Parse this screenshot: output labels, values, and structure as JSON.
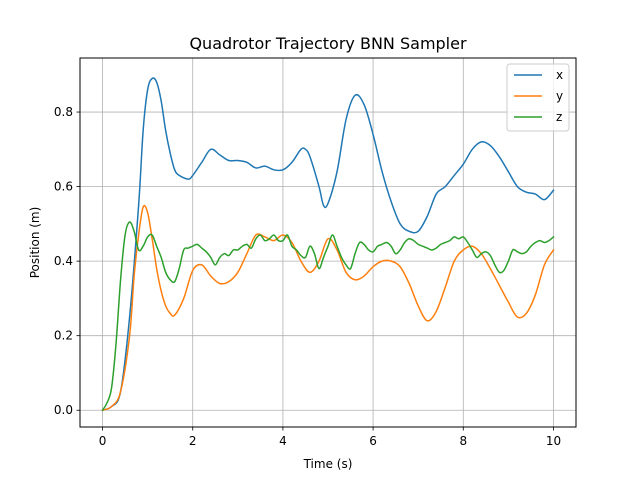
{
  "chart_data": {
    "type": "line",
    "title": "Quadrotor Trajectory BNN Sampler",
    "xlabel": "Time (s)",
    "ylabel": "Position (m)",
    "xlim": [
      -0.5,
      10.5
    ],
    "ylim": [
      -0.045,
      0.945
    ],
    "xticks": [
      0,
      2,
      4,
      6,
      8,
      10
    ],
    "yticks": [
      0.0,
      0.2,
      0.4,
      0.6,
      0.8
    ],
    "xtick_labels": [
      "0",
      "2",
      "4",
      "6",
      "8",
      "10"
    ],
    "ytick_labels": [
      "0.0",
      "0.2",
      "0.4",
      "0.6",
      "0.8"
    ],
    "grid": true,
    "legend_position": "top-right",
    "series": [
      {
        "name": "x",
        "color": "#1f77b4",
        "x": [
          0,
          0.2,
          0.4,
          0.6,
          0.8,
          0.9,
          1.0,
          1.1,
          1.2,
          1.3,
          1.4,
          1.5,
          1.6,
          1.7,
          1.9,
          2.0,
          2.2,
          2.4,
          2.6,
          2.8,
          3.0,
          3.2,
          3.4,
          3.6,
          3.8,
          4.0,
          4.2,
          4.4,
          4.5,
          4.6,
          4.8,
          4.9,
          5.0,
          5.2,
          5.4,
          5.6,
          5.8,
          6.0,
          6.2,
          6.4,
          6.6,
          6.8,
          7.0,
          7.2,
          7.4,
          7.6,
          7.8,
          8.0,
          8.2,
          8.4,
          8.6,
          8.8,
          9.0,
          9.2,
          9.4,
          9.6,
          9.8,
          10.0
        ],
        "y": [
          0.0,
          0.01,
          0.05,
          0.25,
          0.55,
          0.75,
          0.86,
          0.89,
          0.88,
          0.83,
          0.75,
          0.69,
          0.645,
          0.63,
          0.62,
          0.63,
          0.665,
          0.7,
          0.685,
          0.67,
          0.67,
          0.665,
          0.65,
          0.655,
          0.645,
          0.645,
          0.665,
          0.7,
          0.7,
          0.68,
          0.6,
          0.55,
          0.555,
          0.64,
          0.78,
          0.845,
          0.82,
          0.74,
          0.64,
          0.56,
          0.5,
          0.48,
          0.48,
          0.52,
          0.58,
          0.6,
          0.63,
          0.66,
          0.7,
          0.72,
          0.71,
          0.68,
          0.64,
          0.6,
          0.585,
          0.58,
          0.565,
          0.59
        ]
      },
      {
        "name": "y",
        "color": "#ff7f0e",
        "x": [
          0,
          0.2,
          0.4,
          0.6,
          0.7,
          0.8,
          0.9,
          1.0,
          1.1,
          1.2,
          1.3,
          1.4,
          1.5,
          1.6,
          1.8,
          2.0,
          2.2,
          2.4,
          2.6,
          2.8,
          3.0,
          3.2,
          3.4,
          3.6,
          3.8,
          4.0,
          4.2,
          4.4,
          4.6,
          4.8,
          5.0,
          5.2,
          5.4,
          5.6,
          5.8,
          6.0,
          6.2,
          6.4,
          6.6,
          6.8,
          7.0,
          7.2,
          7.4,
          7.6,
          7.8,
          8.0,
          8.2,
          8.4,
          8.6,
          8.8,
          9.0,
          9.2,
          9.4,
          9.6,
          9.8,
          10.0
        ],
        "y": [
          0.0,
          0.01,
          0.05,
          0.2,
          0.36,
          0.47,
          0.545,
          0.53,
          0.46,
          0.38,
          0.32,
          0.28,
          0.26,
          0.255,
          0.3,
          0.375,
          0.39,
          0.36,
          0.34,
          0.345,
          0.37,
          0.42,
          0.47,
          0.465,
          0.455,
          0.47,
          0.45,
          0.4,
          0.37,
          0.4,
          0.46,
          0.43,
          0.37,
          0.35,
          0.36,
          0.385,
          0.4,
          0.4,
          0.385,
          0.34,
          0.28,
          0.24,
          0.265,
          0.33,
          0.4,
          0.43,
          0.44,
          0.42,
          0.38,
          0.335,
          0.29,
          0.25,
          0.26,
          0.31,
          0.39,
          0.43
        ]
      },
      {
        "name": "z",
        "color": "#2ca02c",
        "x": [
          0,
          0.1,
          0.2,
          0.3,
          0.4,
          0.5,
          0.6,
          0.7,
          0.8,
          0.9,
          1.0,
          1.1,
          1.2,
          1.3,
          1.4,
          1.5,
          1.6,
          1.7,
          1.8,
          1.9,
          2.0,
          2.1,
          2.2,
          2.3,
          2.4,
          2.5,
          2.6,
          2.7,
          2.8,
          2.9,
          3.0,
          3.1,
          3.2,
          3.3,
          3.4,
          3.5,
          3.6,
          3.7,
          3.8,
          3.9,
          4.0,
          4.1,
          4.2,
          4.3,
          4.4,
          4.5,
          4.6,
          4.7,
          4.8,
          4.9,
          5.0,
          5.1,
          5.2,
          5.3,
          5.4,
          5.5,
          5.6,
          5.7,
          5.8,
          5.9,
          6.0,
          6.1,
          6.2,
          6.3,
          6.4,
          6.5,
          6.6,
          6.7,
          6.8,
          6.9,
          7.0,
          7.1,
          7.2,
          7.3,
          7.4,
          7.5,
          7.6,
          7.7,
          7.8,
          7.9,
          8.0,
          8.1,
          8.2,
          8.3,
          8.4,
          8.5,
          8.6,
          8.7,
          8.8,
          8.9,
          9.0,
          9.1,
          9.2,
          9.3,
          9.4,
          9.5,
          9.6,
          9.7,
          9.8,
          9.9,
          10.0
        ],
        "y": [
          0.0,
          0.02,
          0.06,
          0.18,
          0.35,
          0.47,
          0.505,
          0.48,
          0.43,
          0.44,
          0.465,
          0.47,
          0.44,
          0.41,
          0.37,
          0.35,
          0.345,
          0.38,
          0.43,
          0.435,
          0.44,
          0.445,
          0.435,
          0.425,
          0.41,
          0.39,
          0.41,
          0.42,
          0.415,
          0.43,
          0.43,
          0.44,
          0.445,
          0.435,
          0.46,
          0.47,
          0.455,
          0.46,
          0.47,
          0.455,
          0.455,
          0.47,
          0.44,
          0.43,
          0.415,
          0.41,
          0.44,
          0.42,
          0.38,
          0.41,
          0.44,
          0.47,
          0.44,
          0.41,
          0.39,
          0.38,
          0.42,
          0.45,
          0.445,
          0.43,
          0.425,
          0.44,
          0.445,
          0.45,
          0.44,
          0.42,
          0.43,
          0.45,
          0.46,
          0.455,
          0.445,
          0.44,
          0.435,
          0.43,
          0.435,
          0.445,
          0.45,
          0.455,
          0.465,
          0.46,
          0.465,
          0.45,
          0.43,
          0.41,
          0.42,
          0.425,
          0.415,
          0.39,
          0.37,
          0.375,
          0.4,
          0.43,
          0.425,
          0.42,
          0.425,
          0.44,
          0.45,
          0.455,
          0.45,
          0.455,
          0.465
        ]
      }
    ]
  }
}
